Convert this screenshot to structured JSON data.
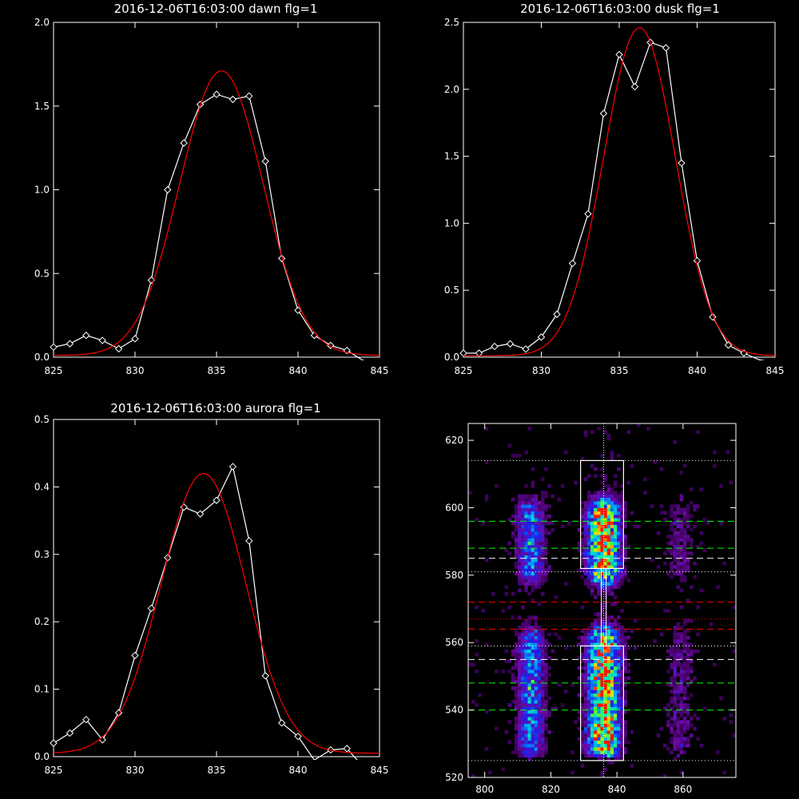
{
  "chart_data": [
    {
      "type": "line",
      "title": "2016-12-06T16:03:00 dawn flg=1",
      "xlim": [
        825,
        845
      ],
      "ylim": [
        0,
        2.0
      ],
      "xticks": [
        825,
        830,
        835,
        840,
        845
      ],
      "yticks": [
        0.0,
        0.5,
        1.0,
        1.5,
        2.0
      ],
      "xtick_labels": [
        "825",
        "830",
        "835",
        "840",
        "845"
      ],
      "ytick_labels": [
        "0.0",
        "0.5",
        "1.0",
        "1.5",
        "2.0"
      ],
      "series": [
        {
          "color": "#ffffff",
          "marker": "diamond",
          "x": [
            825,
            826,
            827,
            828,
            829,
            830,
            831,
            832,
            833,
            834,
            835,
            836,
            837,
            838,
            839,
            840,
            841,
            842,
            843,
            844,
            845
          ],
          "y": [
            0.06,
            0.08,
            0.13,
            0.1,
            0.05,
            0.11,
            0.46,
            1.0,
            1.28,
            1.51,
            1.57,
            1.54,
            1.56,
            1.17,
            0.59,
            0.28,
            0.13,
            0.07,
            0.04,
            -0.02,
            -0.03
          ]
        },
        {
          "color": "#ff0000",
          "marker": "none",
          "fit": "gaussian",
          "amplitude": 1.7,
          "center": 835.3,
          "sigma": 2.55,
          "offset": 0.01
        }
      ]
    },
    {
      "type": "line",
      "title": "2016-12-06T16:03:00 dusk flg=1",
      "xlim": [
        825,
        845
      ],
      "ylim": [
        0,
        2.5
      ],
      "xticks": [
        825,
        830,
        835,
        840,
        845
      ],
      "yticks": [
        0.0,
        0.5,
        1.0,
        1.5,
        2.0,
        2.5
      ],
      "xtick_labels": [
        "825",
        "830",
        "835",
        "840",
        "845"
      ],
      "ytick_labels": [
        "0.0",
        "0.5",
        "1.0",
        "1.5",
        "2.0",
        "2.5"
      ],
      "series": [
        {
          "color": "#ffffff",
          "marker": "diamond",
          "x": [
            825,
            826,
            827,
            828,
            829,
            830,
            831,
            832,
            833,
            834,
            835,
            836,
            837,
            838,
            839,
            840,
            841,
            842,
            843,
            844,
            845
          ],
          "y": [
            0.03,
            0.03,
            0.08,
            0.1,
            0.06,
            0.15,
            0.32,
            0.7,
            1.07,
            1.82,
            2.26,
            2.02,
            2.35,
            2.31,
            1.45,
            0.72,
            0.3,
            0.09,
            0.03,
            -0.02,
            -0.04
          ]
        },
        {
          "color": "#ff0000",
          "marker": "none",
          "fit": "gaussian",
          "amplitude": 2.45,
          "center": 836.3,
          "sigma": 2.3,
          "offset": 0.01
        }
      ]
    },
    {
      "type": "line",
      "title": "2016-12-06T16:03:00 aurora flg=1",
      "xlim": [
        825,
        845
      ],
      "ylim": [
        0,
        0.5
      ],
      "xticks": [
        825,
        830,
        835,
        840,
        845
      ],
      "yticks": [
        0.0,
        0.1,
        0.2,
        0.3,
        0.4,
        0.5
      ],
      "xtick_labels": [
        "825",
        "830",
        "835",
        "840",
        "845"
      ],
      "ytick_labels": [
        "0.0",
        "0.1",
        "0.2",
        "0.3",
        "0.4",
        "0.5"
      ],
      "series": [
        {
          "color": "#ffffff",
          "marker": "diamond",
          "x": [
            825,
            826,
            827,
            828,
            829,
            830,
            831,
            832,
            833,
            834,
            835,
            836,
            837,
            838,
            839,
            840,
            841,
            842,
            843,
            844,
            845
          ],
          "y": [
            0.02,
            0.035,
            0.055,
            0.025,
            0.065,
            0.15,
            0.22,
            0.295,
            0.37,
            0.36,
            0.38,
            0.43,
            0.32,
            0.12,
            0.05,
            0.03,
            -0.005,
            0.01,
            0.012,
            -0.015,
            -0.02
          ]
        },
        {
          "color": "#ff0000",
          "marker": "none",
          "fit": "gaussian",
          "amplitude": 0.415,
          "center": 834.2,
          "sigma": 2.6,
          "offset": 0.005
        }
      ]
    },
    {
      "type": "heatmap",
      "xlim": [
        795,
        876
      ],
      "ylim": [
        520,
        625
      ],
      "xticks": [
        800,
        820,
        840,
        860
      ],
      "yticks": [
        520,
        540,
        560,
        580,
        600,
        620
      ],
      "xtick_labels": [
        "800",
        "820",
        "840",
        "860"
      ],
      "ytick_labels": [
        "520",
        "540",
        "560",
        "580",
        "600",
        "620"
      ],
      "colormap": "rainbow",
      "emission_columns": [
        {
          "x": 814,
          "width": 3,
          "strength": 0.55
        },
        {
          "x": 836,
          "width": 3.5,
          "strength": 1.0
        },
        {
          "x": 859,
          "width": 3,
          "strength": 0.22
        }
      ],
      "bright_bands": [
        {
          "y_from": 582,
          "y_to": 598
        },
        {
          "y_from": 530,
          "y_to": 560
        }
      ],
      "boxes": [
        {
          "x_from": 829,
          "x_to": 842,
          "y_from": 582,
          "y_to": 614
        },
        {
          "x_from": 829,
          "x_to": 842,
          "y_from": 525,
          "y_to": 559
        }
      ],
      "vertical_line_x": 836,
      "hlines": [
        {
          "y": 614,
          "color": "#ffffff",
          "style": "dotted"
        },
        {
          "y": 596,
          "color": "#00ff00",
          "style": "dashed"
        },
        {
          "y": 588,
          "color": "#00ff00",
          "style": "dashed"
        },
        {
          "y": 585,
          "color": "#ffffff",
          "style": "dashed"
        },
        {
          "y": 581,
          "color": "#ffffff",
          "style": "dotted"
        },
        {
          "y": 572,
          "color": "#ff0000",
          "style": "dashed"
        },
        {
          "y": 567,
          "color": "#ff0000",
          "style": "dotted"
        },
        {
          "y": 564,
          "color": "#ff0000",
          "style": "dashed"
        },
        {
          "y": 559,
          "color": "#ffffff",
          "style": "dotted"
        },
        {
          "y": 555,
          "color": "#ffffff",
          "style": "dashed"
        },
        {
          "y": 548,
          "color": "#00ff00",
          "style": "dashed"
        },
        {
          "y": 540,
          "color": "#00ff00",
          "style": "dashed"
        },
        {
          "y": 525,
          "color": "#ffffff",
          "style": "dotted"
        }
      ]
    }
  ]
}
